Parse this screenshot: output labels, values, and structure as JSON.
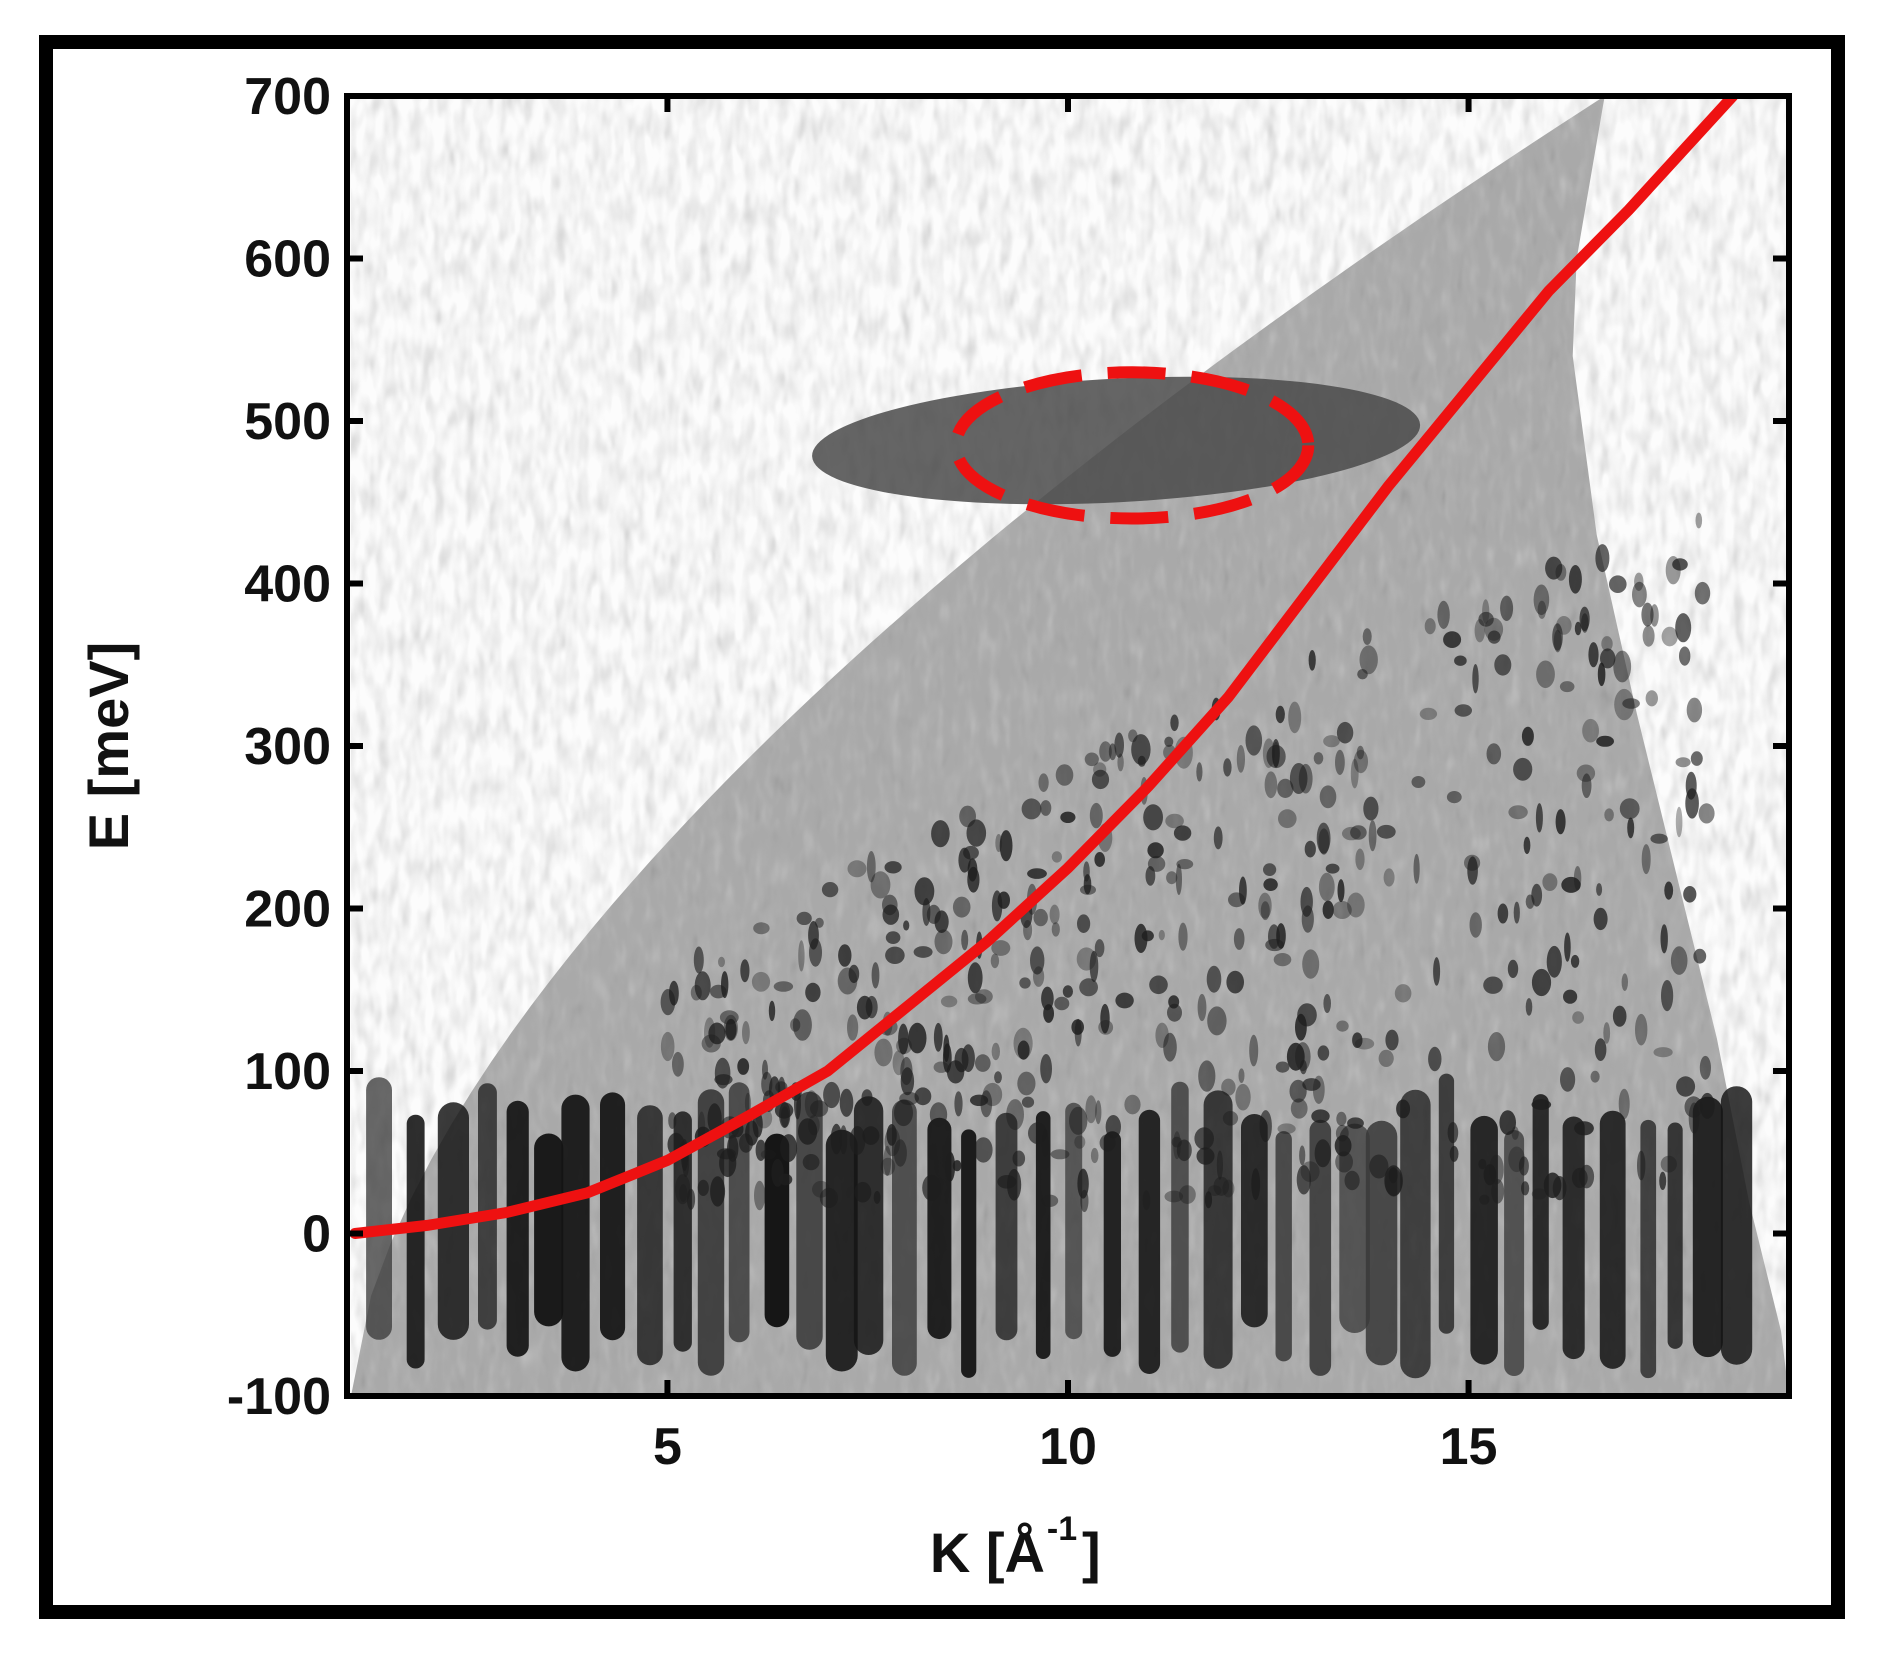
{
  "chart_data": {
    "type": "scatter",
    "xlabel_main": "K  [Å",
    "xlabel_sup": "-1",
    "xlabel_close": "]",
    "ylabel": "E  [meV]",
    "xlim": [
      1.0,
      19.0
    ],
    "ylim": [
      -100,
      700
    ],
    "xticks": [
      5,
      10,
      15
    ],
    "yticks": [
      -100,
      0,
      100,
      200,
      300,
      400,
      500,
      600,
      700
    ],
    "curve": {
      "color": "#ee1111",
      "points": [
        [
          1.1,
          0
        ],
        [
          2,
          5
        ],
        [
          3,
          13
        ],
        [
          4,
          25
        ],
        [
          5,
          45
        ],
        [
          6,
          72
        ],
        [
          7,
          100
        ],
        [
          8,
          140
        ],
        [
          9,
          180
        ],
        [
          10,
          225
        ],
        [
          11,
          275
        ],
        [
          12,
          330
        ],
        [
          13,
          395
        ],
        [
          14,
          460
        ],
        [
          15,
          520
        ],
        [
          16,
          580
        ],
        [
          17,
          630
        ],
        [
          18.3,
          700
        ]
      ]
    },
    "annotation": {
      "shape": "dashed-ellipse",
      "color": "#ee1111",
      "center": [
        10.8,
        485
      ],
      "radius_k": 2.2,
      "radius_e": 45
    },
    "colormap": "grayscale"
  }
}
